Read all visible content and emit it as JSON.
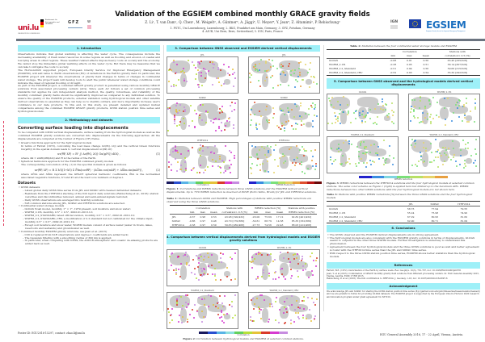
{
  "header": {
    "title": "Validation of the EGSIEM combined monthly GRACE gravity fields",
    "authors": "Z. Li¹, T. van Dam¹, Q. Chen¹, M. Weigelt², A. Güntner³, A. Jäggi⁴, U. Meyer⁴, Y. Jean⁴, Z. Altamimi⁵, P. Rebischung⁵",
    "affiliations_line1": "1. FSTC, Uni Luxembourg, Luxembourg; 2. BKG, Frankfurt am Main, Germany; 3. GFZ, Potsdam, Germany",
    "affiliations_line2": "4. AIUB, Uni Bern, Bern, Switzerland; 5. IGN, Paris, France",
    "logos": {
      "unilu": "uni.lu",
      "unilu_sub": "UNIVERSITÉ DU LUXEMBOURG",
      "bkg": "Bundesamt für Kartographie und Geodäsie",
      "gfz": "GFZ",
      "w": "w",
      "ign": "IGN",
      "egsiem": "EGSIEM",
      "egsiem_sub": "European Gravity Service for Improved Emergency Management"
    }
  },
  "col1": {
    "sec1_title": "1. Introduction",
    "intro_p1": "Observations indicate that global warming is affecting the water cycle. The consequences include the decreasing availability of fresh water resources in some regions as well as flooding and erosion of coastal and low-lying areas in other regions. These weather related effects impose heavy costs on society and the economy. We cannot stop the immediate global warming effects on the water cycle. But there may be measures that we can take to mitigate the costs to society.",
    "intro_p2": "The Horizon2020 supported project, European Gravity Service for Improved Emergency Management (EGSIEM), will add value to Earth observations (EO) of variations in the Earth's gravity field. In particular, the EGSIEM project will interpret the observations of gravity field changes in terms of changes in continental water storage. The project team will develop tools to alert the public whenever water storage conditions could indicate the onset of regional flooding or drought.",
    "intro_p3": "As part of the EGSIEM project, a combined GRACE gravity product is generated using various monthly GRACE solutions from associated processing centers (ACs). Since each AC follows a set of common processing standards but applies its own independent analysis method, the quality, robustness, and reliability of the monthly combined gravity fields should be significantly improved as compared to any individual solution. To ensure the quality of the EGSIEM products, external validation using hydrological models and other satellite derived observations is essential as they can help us to identify outliers, and more importantly increase user's confidence in our data products. To this end, in this study, we present detailed and updated mutual comparisons among the combined EGSIEM GRACE gravity products, GNSS station position time series and hydrological models.",
    "sec2_title": "2. Methodology and datasets",
    "conv_heading": "Converting surface loading into displacements",
    "conv_p": "To be compared with GNSS vertical displacements, surface loading from the hydrological models as well as the combined EGSIEM gravity solutions are converted into displacements via the following approaches. All the displacements are computed at the Center of Figure (CF) frame.",
    "green_bullet": "• Green's functions approach for the hydrological models",
    "green_text": "In terms of Farrell (1972), convolving the load mass change Δσ(θQ, λQ) and the vertical Green functions Gu(ψPQ) in the spatial domain leads to vertical displacement uv(θP, λP)",
    "eq1": "uv(θP, λP) = R² ∬ Δσ(θQ, λQ) Gu(ψPQ) dΩQ ,",
    "eq1_num": "(1)",
    "eq1_where": "where dΩ = sinθQdθQdλQ and R is the radius of the Earth.",
    "sh_bullet": "• Spherical harmonics approach for the EGSIEM combined gravity models",
    "sh_text": "The corresponding convolution of Eq. (1) in the spectral domain is given as follows",
    "eq2": "uv(θP, λP) = R Σ h'l/(1+k'l) Σ P̄lm(cosθP) · (ΔC̄lm cos(mλP) + ΔS̄lm sin(mλP)) ,",
    "eq2_num": "(2)",
    "eq2_where": "where ΔC̄lm and ΔS̄lm represent the GRACE spherical harmonic coefficients, P̄lm is the normalized associated Legendre functions, h'l and k'l are the load Love numbers of degree l.",
    "datasets_heading": "Datasets",
    "gnss_bullet": "• GNSS datasets",
    "gnss_items": [
      "– Latest global daily GNSS time series from JPL and SOPAC with cleaned detrended datasets;",
      "– Residuals from the ITRF2014 stacking of the IGS repro2 daily solutions (Rebischung et al., 2016): station velocities and discontinuities removed, annual and semi-annual signals restored;",
      "– Daily GNSS observations are averaged into monthly solutions;",
      "– 528 common stations among JPL, SOPAC and ITRF2014 solutions are selected."
    ],
    "cws_bullet": "• Continental water storage models",
    "cws_items": [
      "– GLDAS Noah model, monthly, 1° × 1°, 1979-present, soil moisture and snow water;",
      "– WGHM_2.18i, monthly, 0.5° × 0.5°, 2002.01-2013.12;",
      "– WGHM_2.2_STANDARD, latest official version, monthly, 0.5° × 0.5°, 2002.01-2010.10;",
      "– WGHM_2.2_STANDARD_CRU, a modification of 2.2 standard but not calibrated for the climate input, monthly, 0.5° × 0.5°, 2002.01-2012.12;",
      "– Except soil moisture and snow water, WGHM models consist of surface water (water in rivers, lakes, reservoirs and wetlands) and groundwater as well."
    ],
    "comb_bullet": "• Combined monthly EGSIEM gravity solutions, see Jean et al. (2015)",
    "comb_items": [
      "– C20 is replaced from SLR observations and degree-1 coefficients are added back;",
      "– The Gaussian filtering with a smoothing radius of 300 km is applied;",
      "– In particular, when comparing with GNSS, the AOD1B atmospheric and oceanic de-aliasing products are added back as well."
    ],
    "poster_id": "Poster ID: EGU2016-15297, contact: zhao.li@uni.lu"
  },
  "col2": {
    "sec3_title": "3. Comparison between GNSS observed and EGSIEM derived vertical displacements",
    "fig1_maps_left": [
      "JPL",
      "SOPAC",
      "ITRF2014"
    ],
    "fig1_maps_right": [
      "JPL",
      "SOPAC",
      "ITRF2014"
    ],
    "fig1_cbar_left_label": "Correlation",
    "fig1_cbar_right_label": "WRMS Reduction",
    "fig1_caption_label": "Figure 1:",
    "fig1_caption": "Correlations and WRMS reductions between three GNSS solutions and the EGSIEM derived vertical displacements. Up to 75% WRMS reduction is observed at POVE (Porto Velho, Brazil) for JPL and ITRF2014 solutions.",
    "table1_label": "Table 1:",
    "table1_caption": "Statistics between GNSS and EGSIEM. High percentages of stations with positive WRMS reductions are observed using the three GNSS solutions.",
    "table1": {
      "group_headers": [
        "Correlation",
        "Stations with",
        "WRMS reduction [%]",
        "Stations with positive"
      ],
      "sub_headers": [
        "min",
        "max",
        "mean",
        "correlation> 0.5 [%]",
        "min",
        "max",
        "mean",
        "WRMS reduction [%]"
      ],
      "rows": [
        [
          "JPL",
          "-0.37",
          "0.98",
          "0.53",
          "43.98 [190/432]",
          "-26.00",
          "75.69",
          "17.12",
          "92.82 [401/432]"
        ],
        [
          "SOPAC",
          "-0.86",
          "0.97",
          "0.48",
          "43.70 [170/389]",
          "-30.61",
          "68.79",
          "14.58",
          "85.35 [332/389]"
        ],
        [
          "ITRF2014",
          "-0.38",
          "0.97",
          "0.59",
          "59.83 [280/468]",
          "-27.73",
          "74.56",
          "22.43",
          "88.03 [412/468]"
        ]
      ]
    },
    "sec4_title": "4. Comparison between vertical displacements derived from hydrological models and EGSIEM gravity solutions",
    "fig2_maps": [
      "GLDAS",
      "WGHM_2.18i",
      "WGHM_2.2_Standard",
      "WGHM_2.2_Standard_CRU"
    ],
    "fig2_cbar_label": "Correlation",
    "fig2_cbar_ticks": [
      "-1.0",
      "-0.8",
      "-0.6",
      "-0.4",
      "-0.2",
      "0.0",
      "0.2",
      "0.4",
      "0.6",
      "0.8",
      "1.0"
    ],
    "fig2_caption_label": "Figure 2:",
    "fig2_caption": "Correlation between hydrological models and EGSIEM at selected common stations."
  },
  "col3": {
    "table2_label": "Table 2:",
    "table2_caption": "Statistics between the four continental water storage models and EGSIEM",
    "table2": {
      "group_headers": [
        "Correlation",
        "Stations with"
      ],
      "sub_headers": [
        "min",
        "max",
        "mean",
        "correlation> 0.5 [%]"
      ],
      "rows": [
        [
          "GLDAS",
          "-0.68",
          "0.91",
          "0.56",
          "63.45 [335/528]"
        ],
        [
          "WGHM_2.18i",
          "-0.38",
          "0.95",
          "0.51",
          "58.14 [307/528]"
        ],
        [
          "WGHM_2.2_Standard",
          "-0.51",
          "0.94",
          "0.56",
          "59.66 [315/528]"
        ],
        [
          "WGHM_2.2_Standard_CRU",
          "-0.52",
          "0.93",
          "0.54",
          "55.30 [292/528]"
        ]
      ]
    },
    "sec5_title": "5. Comparison between GNSS observed and the hydrological models derived vertical displacements",
    "fig3_maps": [
      "GLDAS",
      "WGHM_2.18i",
      "WGHM_2.2_Standard",
      "WGHM_2.2_Standard_CRU"
    ],
    "fig3_cbar_label": "WRMS reduction",
    "fig3_caption_label": "Figure 3:",
    "fig3_caption": "WRMS reductions between the ITRF2014 solutions and the four hydrological models at selected common stations. The same color scheme as Figure 1 (right) is applied here but limited up to the maximum 40%. WRMS reductions between two other GNSS solutions with the four hydrological models are not shown here.",
    "table3_label": "Table 3:",
    "table3_caption": "Stations with positive WRMS reductions [%] between the three GNSS solutions and the four hydrological models",
    "table3": {
      "headers": [
        "",
        "JPL",
        "SOPAC",
        "ITRF2014"
      ],
      "rows": [
        [
          "GLDAS",
          "58.73",
          "77.94",
          "79.55"
        ],
        [
          "WGHM_2.18i",
          "55.24",
          "75.98",
          "74.90"
        ],
        [
          "WGHM_2.2_Standard",
          "67.29",
          "80.95",
          "81.60"
        ],
        [
          "WGHM_2.2_Standard_CRU",
          "62.90",
          "80.71",
          "81.09"
        ]
      ]
    },
    "sec6_title": "6. Conclusions",
    "conclusions": [
      "• The GNSS observed and the EGSIEM derived displacements are in strong agreement.",
      "• The hydrological models are also consistent with the EGSIEM gravity solutions in terms of displacements. GLDAS seems to outperform the other three WGHM models. Further investigation is underway to understand this phenomenon.",
      "• Agreement between the four hydrological models and the three GNSS solutions is good as well and better agreement is found with the ITRF2014 time series than the JPL and SOPAC time series.",
      "• With respect to the three GNSS station position time series, EGSIEM shows better statistics than the hydrological models."
    ],
    "refs_title": "References",
    "references": [
      "Farrell, W.E. (1972). Deformation of the Earth by surface loads. Rev. Geophys. 10(3), 761-797, doi: 10.1029/RG010i003p00761",
      "Jean, Y. et al (2015). Combination of GRACE monthly gravity field solutions from different processing centers. In: EGU General Assembly 2015, Vienna, Austria. EGM 17:EM 2015.",
      "Rebischung, P. et al. (2016). The IGS contribution to ITRF2014. J. Geodesy, 1-18, doi: 10.1007/s00190-016-0897-6"
    ],
    "ack_title": "Acknowledgment",
    "acknowledgment": "We acknowledge JPL and SOPAC for sharing the GNSS station position time series (ftp://garner.ucsd.edu/pub/timeseries/measures/ats/cleaned/) and we are grateful to NASA for providing GLDAS datasets. The EGSIEM project is supported by the European Union's Horizon 2020 research and innovation program under grant agreement No 637010.",
    "footer": "EGU General Assembly 2016, 17 - 22 April, Vienna, Austria."
  },
  "colors": {
    "section_header_bg": "#9ef0f8",
    "header_bar": "#6b7480",
    "egsiem_blue": "#1a6fc0",
    "unilu_red": "#c8102e",
    "correlation_scale": [
      "#1a1a5e",
      "#2a4fd0",
      "#5ab4e6",
      "#8fe0e0",
      "#62d15e",
      "#b6e03a",
      "#e6c23a",
      "#d93a2a",
      "#d63ad0",
      "#c78de0"
    ],
    "wrms_scale": [
      "#2222cc",
      "#3a8ee0",
      "#7fd6e0",
      "#7be07a",
      "#b8e066",
      "#e6d46a",
      "#e8a040",
      "#e05030",
      "#b81818",
      "#6a0a0a"
    ]
  }
}
